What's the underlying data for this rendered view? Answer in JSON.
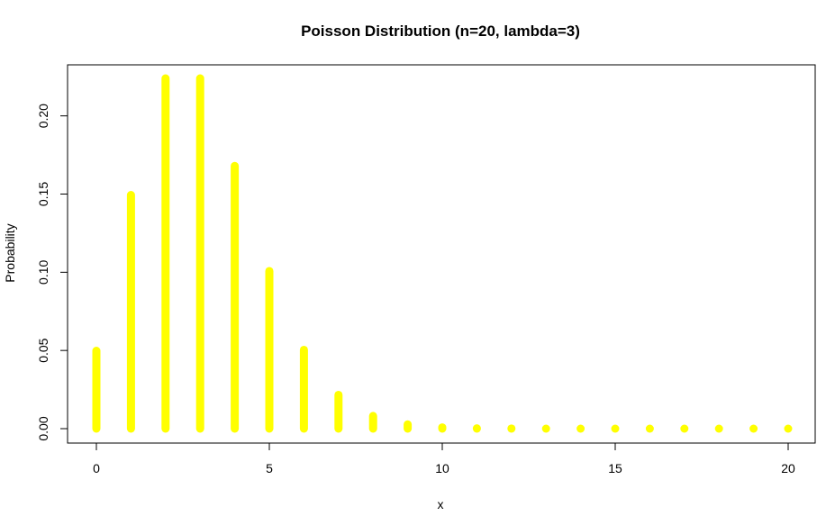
{
  "chart_data": {
    "type": "bar",
    "title": "Poisson Distribution (n=20, lambda=3)",
    "xlabel": "x",
    "ylabel": "Probability",
    "x": [
      0,
      1,
      2,
      3,
      4,
      5,
      6,
      7,
      8,
      9,
      10,
      11,
      12,
      13,
      14,
      15,
      16,
      17,
      18,
      19,
      20
    ],
    "values": [
      0.0498,
      0.1494,
      0.224,
      0.224,
      0.168,
      0.1008,
      0.0504,
      0.0216,
      0.0081,
      0.0027,
      0.0008,
      0.0002,
      0.0001,
      0.0,
      0.0,
      0.0,
      0.0,
      0.0,
      0.0,
      0.0,
      0.0
    ],
    "xlim": [
      0,
      20
    ],
    "ylim": [
      0,
      0.224
    ],
    "xticks": [
      0,
      5,
      10,
      15,
      20
    ],
    "xtick_labels": [
      "0",
      "5",
      "10",
      "15",
      "20"
    ],
    "yticks": [
      0,
      0.05,
      0.1,
      0.15,
      0.2
    ],
    "ytick_labels": [
      "0.00",
      "0.05",
      "0.10",
      "0.15",
      "0.20"
    ],
    "color": "#ffff00",
    "grid": false,
    "legend": "none"
  }
}
